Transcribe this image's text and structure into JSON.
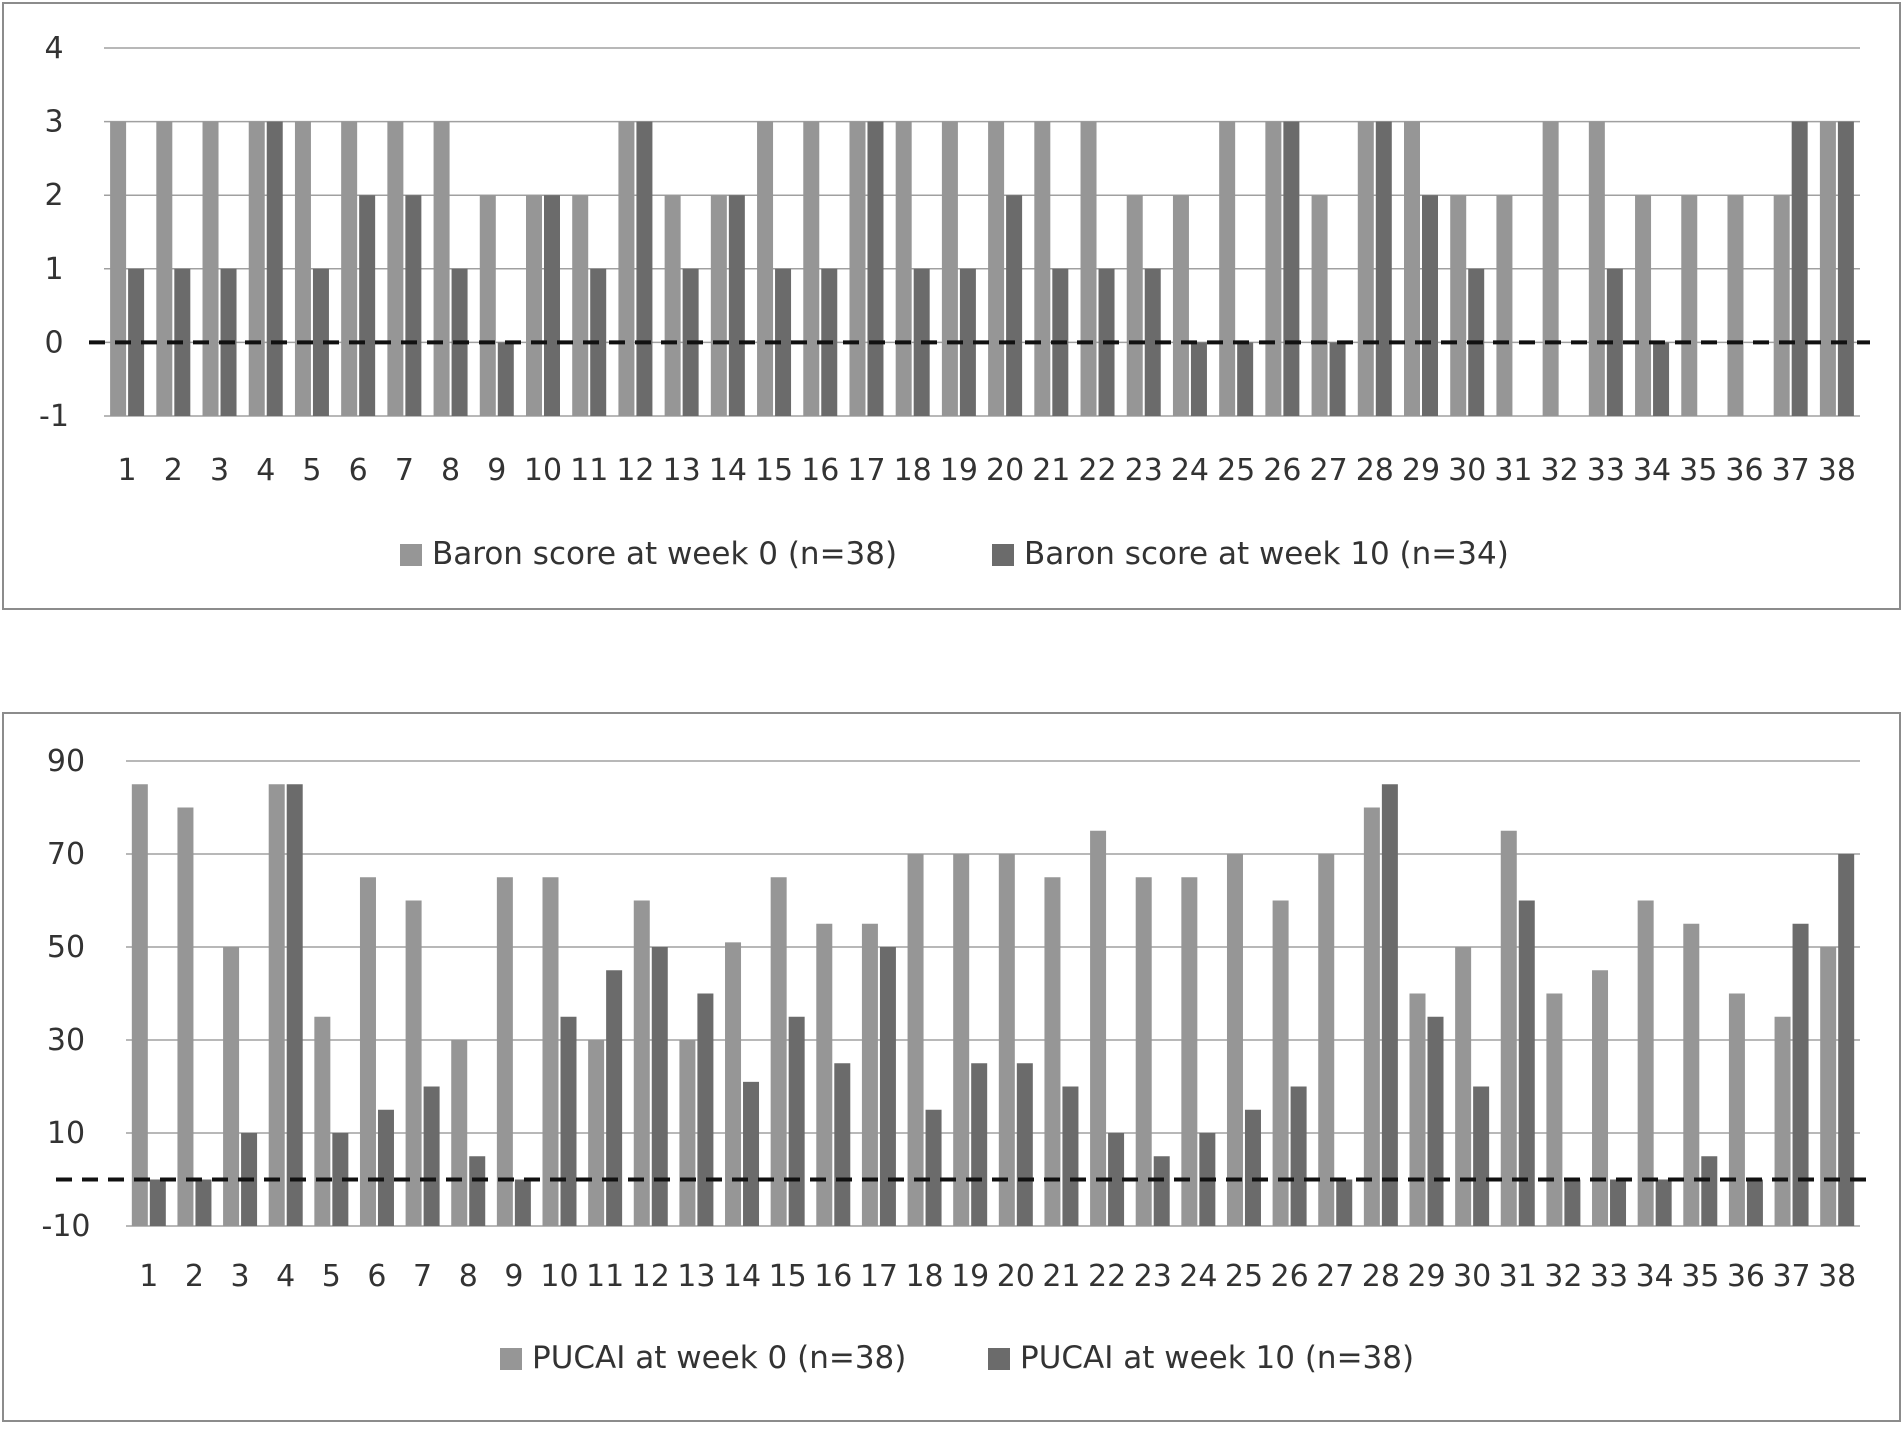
{
  "chart_data": [
    {
      "type": "bar",
      "categories": [
        "1",
        "2",
        "3",
        "4",
        "5",
        "6",
        "7",
        "8",
        "9",
        "10",
        "11",
        "12",
        "13",
        "14",
        "15",
        "16",
        "17",
        "18",
        "19",
        "20",
        "21",
        "22",
        "23",
        "24",
        "25",
        "26",
        "27",
        "28",
        "29",
        "30",
        "31",
        "32",
        "33",
        "34",
        "35",
        "36",
        "37",
        "38"
      ],
      "series": [
        {
          "name": "Baron score at week 0 (n=38)",
          "color": "#969696",
          "values": [
            3,
            3,
            3,
            3,
            3,
            3,
            3,
            3,
            2,
            2,
            2,
            3,
            2,
            2,
            3,
            3,
            3,
            3,
            3,
            3,
            3,
            3,
            2,
            2,
            3,
            3,
            2,
            3,
            3,
            2,
            2,
            3,
            3,
            2,
            2,
            2,
            2,
            3
          ]
        },
        {
          "name": "Baron score at week 10 (n=34)",
          "color": "#6b6b6b",
          "values": [
            1,
            1,
            1,
            3,
            1,
            2,
            2,
            1,
            0,
            2,
            1,
            3,
            1,
            2,
            1,
            1,
            3,
            1,
            1,
            2,
            1,
            1,
            1,
            0,
            0,
            3,
            0,
            3,
            2,
            1,
            null,
            null,
            1,
            0,
            null,
            null,
            3,
            3
          ]
        }
      ],
      "ylim": [
        -1,
        4
      ],
      "yticks": [
        "-1",
        "0",
        "1",
        "2",
        "3",
        "4"
      ],
      "reference_line": 0,
      "grid": true,
      "legend": "bottom"
    },
    {
      "type": "bar",
      "categories": [
        "1",
        "2",
        "3",
        "4",
        "5",
        "6",
        "7",
        "8",
        "9",
        "10",
        "11",
        "12",
        "13",
        "14",
        "15",
        "16",
        "17",
        "18",
        "19",
        "20",
        "21",
        "22",
        "23",
        "24",
        "25",
        "26",
        "27",
        "28",
        "29",
        "30",
        "31",
        "32",
        "33",
        "34",
        "35",
        "36",
        "37",
        "38"
      ],
      "series": [
        {
          "name": "PUCAI at week 0 (n=38)",
          "color": "#969696",
          "values": [
            85,
            80,
            50,
            85,
            35,
            65,
            60,
            30,
            65,
            65,
            30,
            60,
            30,
            51,
            65,
            55,
            55,
            70,
            70,
            70,
            65,
            75,
            65,
            65,
            70,
            60,
            70,
            80,
            40,
            50,
            75,
            40,
            45,
            60,
            55,
            40,
            35,
            50
          ]
        },
        {
          "name": "PUCAI at week 10 (n=38)",
          "color": "#6b6b6b",
          "values": [
            0,
            0,
            10,
            85,
            10,
            15,
            20,
            5,
            0,
            35,
            45,
            50,
            40,
            21,
            35,
            25,
            50,
            15,
            25,
            25,
            20,
            10,
            5,
            10,
            15,
            20,
            0,
            85,
            35,
            20,
            60,
            0,
            0,
            0,
            5,
            0,
            55,
            70
          ]
        }
      ],
      "ylim": [
        -10,
        90
      ],
      "yticks": [
        "-10",
        "10",
        "30",
        "50",
        "70",
        "90"
      ],
      "reference_line": 0,
      "grid": true,
      "legend": "bottom"
    }
  ]
}
